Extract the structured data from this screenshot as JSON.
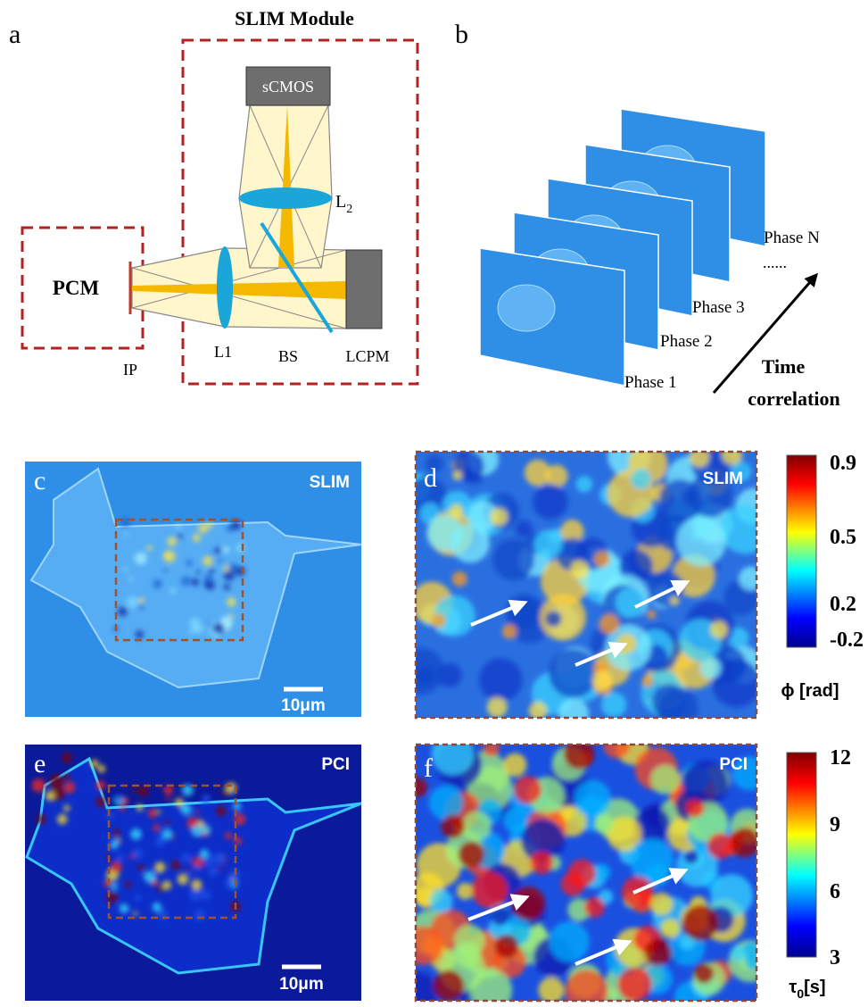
{
  "panel_a": {
    "label": "a",
    "title": "SLIM Module",
    "camera": "sCMOS",
    "lens2": {
      "text": "L",
      "sub": "2"
    },
    "pcm": "PCM",
    "ip": "IP",
    "lens1": "L1",
    "bs": "BS",
    "lcpm": "LCPM"
  },
  "panel_b": {
    "label": "b",
    "frames": [
      "Phase 1",
      "Phase 2",
      "Phase 3",
      "Phase N"
    ],
    "ellipsis": "......",
    "axis_label": [
      "Time",
      "correlation"
    ]
  },
  "panel_c": {
    "label": "c",
    "tag": "SLIM",
    "scale_bar": "10μm"
  },
  "panel_d": {
    "label": "d",
    "tag": "SLIM"
  },
  "colorbar_phase": {
    "ticks": [
      0.9,
      0.5,
      0.2,
      -0.2
    ],
    "symbol": "ϕ",
    "unit": "[rad]"
  },
  "panel_e": {
    "label": "e",
    "tag": "PCI",
    "scale_bar": "10μm"
  },
  "panel_f": {
    "label": "f",
    "tag": "PCI"
  },
  "colorbar_tau": {
    "ticks": [
      12,
      9,
      6,
      3
    ],
    "symbol": "τ",
    "sub": "0",
    "unit": "[s]"
  }
}
